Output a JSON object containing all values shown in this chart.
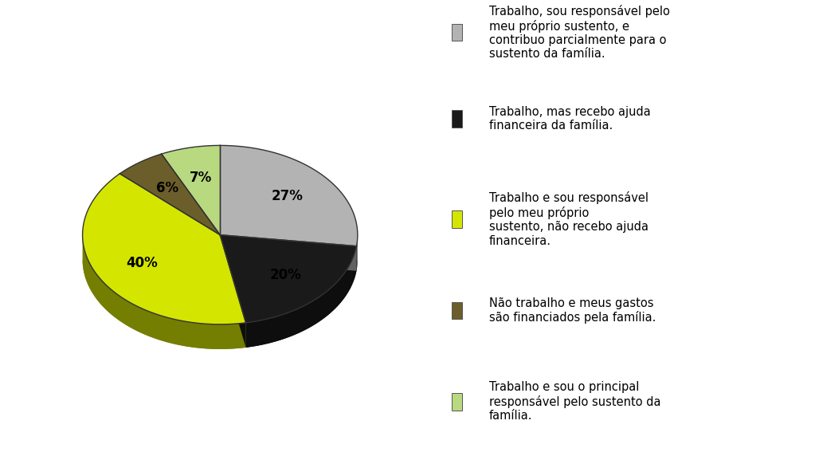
{
  "pie_sizes": [
    27,
    20,
    40,
    6,
    7
  ],
  "pie_colors": [
    "#b3b3b3",
    "#1a1a1a",
    "#d4e600",
    "#6b5e2a",
    "#b8d980"
  ],
  "pie_edge_colors": [
    "#808080",
    "#000000",
    "#9aaa00",
    "#4a4010",
    "#80a050"
  ],
  "pie_labels": [
    "27%",
    "20%",
    "40%",
    "6%",
    "7%"
  ],
  "startangle": 90,
  "legend_colors": [
    "#b3b3b3",
    "#1a1a1a",
    "#d4e600",
    "#6b5e2a",
    "#b8d980"
  ],
  "legend_labels": [
    "Trabalho, sou responsável pelo\nmeu próprio sustento, e\ncontribuo parcialmente para o\nsustento da família.",
    "Trabalho, mas recebo ajuda\nfinanceira da família.",
    "Trabalho e sou responsável\npelo meu próprio\nsustento, não recebo ajuda\nfinanceira.",
    "Não trabalho e meus gastos\nsão financiados pela família.",
    "Trabalho e sou o principal\nresponsável pelo sustento da\nfamília."
  ],
  "background_color": "#ffffff",
  "label_fontsize": 12,
  "legend_fontsize": 10.5
}
